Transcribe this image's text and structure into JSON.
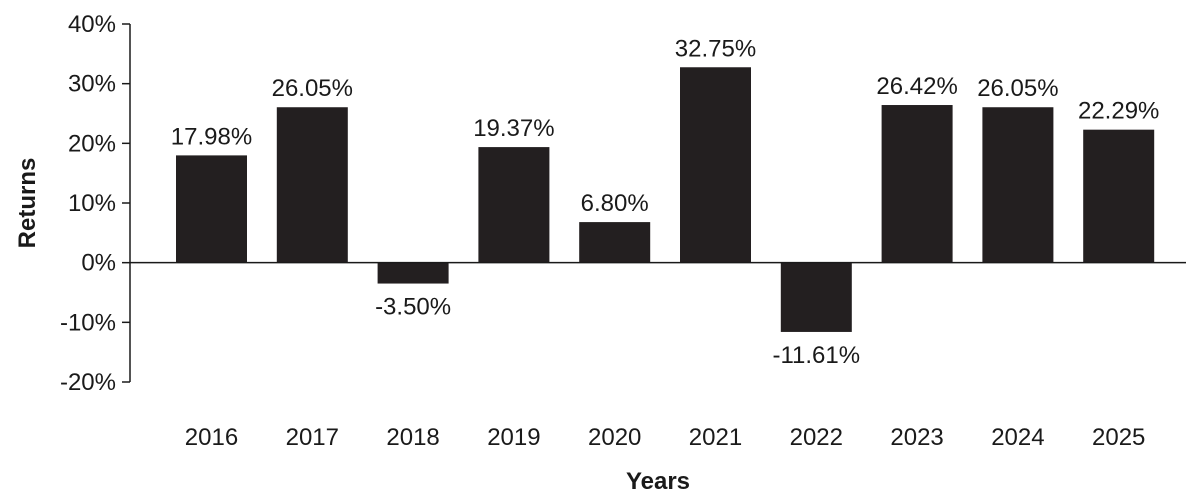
{
  "chart_data": {
    "type": "bar",
    "categories": [
      "2016",
      "2017",
      "2018",
      "2019",
      "2020",
      "2021",
      "2022",
      "2023",
      "2024",
      "2025"
    ],
    "values": [
      17.98,
      26.05,
      -3.5,
      19.37,
      6.8,
      32.75,
      -11.61,
      26.42,
      26.05,
      22.29
    ],
    "data_labels": [
      "17.98%",
      "26.05%",
      "-3.50%",
      "19.37%",
      "6.80%",
      "32.75%",
      "-11.61%",
      "26.42%",
      "26.05%",
      "22.29%"
    ],
    "y_ticks": [
      40,
      30,
      20,
      10,
      0,
      -10,
      -20
    ],
    "y_tick_labels": [
      "40%",
      "30%",
      "20%",
      "10%",
      "0%",
      "-10%",
      "-20%"
    ],
    "title": "",
    "xlabel": "Years",
    "ylabel": "Returns",
    "ylim": [
      -20,
      40
    ],
    "grid": false,
    "bar_color": "#231f20"
  }
}
